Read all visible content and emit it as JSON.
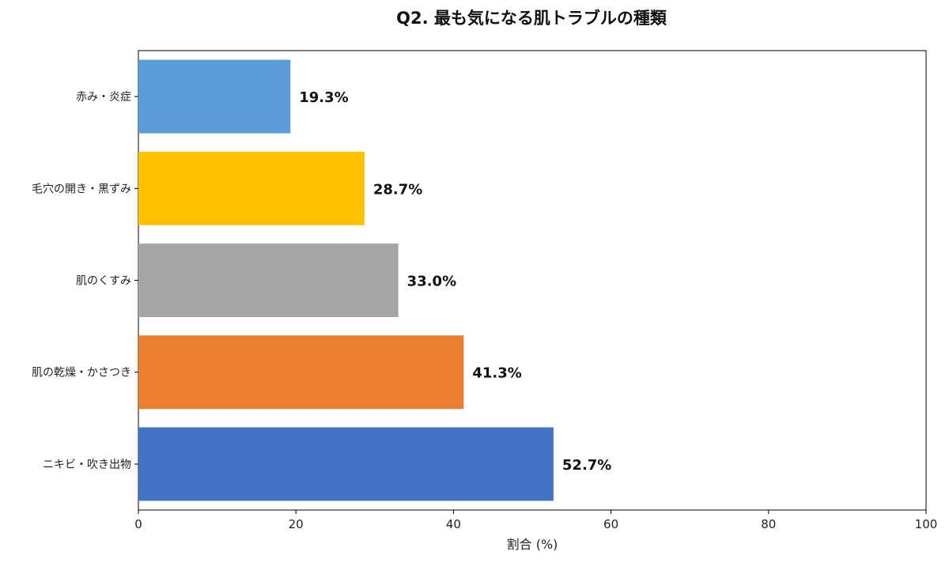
{
  "chart_data": {
    "type": "bar",
    "orientation": "horizontal",
    "title": "Q2. 最も気になる肌トラブルの種類",
    "xlabel": "割合 (%)",
    "ylabel": "",
    "xlim": [
      0,
      100
    ],
    "xticks": [
      0,
      20,
      40,
      60,
      80,
      100
    ],
    "grid": false,
    "categories": [
      "赤み・炎症",
      "毛穴の開き・黒ずみ",
      "肌のくすみ",
      "肌の乾燥・かさつき",
      "ニキビ・吹き出物"
    ],
    "values": [
      19.3,
      28.7,
      33.0,
      41.3,
      52.7
    ],
    "data_labels": [
      "19.3%",
      "28.7%",
      "33.0%",
      "41.3%",
      "52.7%"
    ],
    "colors": [
      "#5b9bd9",
      "#ffc000",
      "#a5a5a5",
      "#ed7d31",
      "#4472c4"
    ]
  }
}
